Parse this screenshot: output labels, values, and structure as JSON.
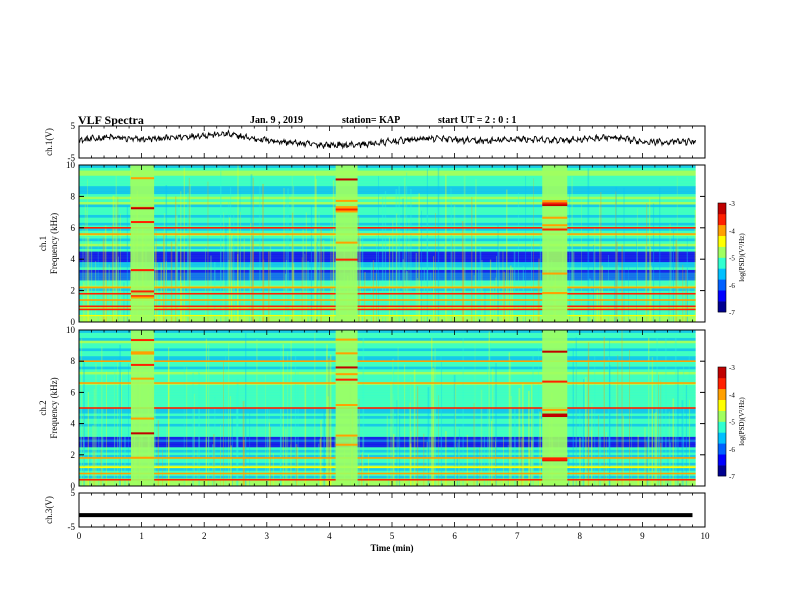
{
  "header": {
    "title": "VLF Spectra",
    "date": "Jan. 9 , 2019",
    "station": "station= KAP",
    "start": "start UT =  2 : 0 : 1"
  },
  "colorbar": {
    "label": "log(PSD)(V²/Hz)",
    "ticks": [
      "-3",
      "-4",
      "-5",
      "-6",
      "-7"
    ],
    "colors": [
      "#000090",
      "#0000ff",
      "#0060ff",
      "#00c0ff",
      "#30ffd0",
      "#a0ff60",
      "#ffff00",
      "#ffa000",
      "#ff2000",
      "#c00000",
      "#ffffff"
    ]
  },
  "chart_data": [
    {
      "type": "line",
      "name": "ch.1",
      "ylabel": "ch.1(V)",
      "ylim": [
        -5,
        5
      ],
      "yticks": [
        "5",
        "-5"
      ],
      "xlim": [
        0,
        10
      ],
      "x_unit": "min",
      "mean_level": 0,
      "note_values_approx": [
        0.5,
        1.5,
        0.8,
        1.2,
        2.0,
        2.5,
        1.0,
        0.0,
        -0.8,
        -1.0,
        -0.5,
        0.5,
        1.2,
        0.5,
        0.3,
        1.0,
        0.5,
        0.8,
        1.5,
        0.3,
        0.0,
        0.2
      ]
    },
    {
      "type": "heatmap",
      "name": "ch.1",
      "ylabel": "ch.1",
      "ylabel2": "Frequency (kHz)",
      "ylim": [
        0,
        10
      ],
      "yticks": [
        "0",
        "2",
        "4",
        "6",
        "8",
        "10"
      ],
      "xlim": [
        0,
        10
      ],
      "bursts_min": [
        [
          0.83,
          1.2
        ],
        [
          4.1,
          4.45
        ],
        [
          7.4,
          7.8
        ]
      ],
      "dark_bands_khz": [
        [
          2.6,
          3.3
        ],
        [
          3.7,
          4.5
        ]
      ],
      "lines_khz": [
        0.4,
        0.8,
        1.0,
        1.4,
        1.8,
        2.2,
        5.6,
        6.0
      ]
    },
    {
      "type": "heatmap",
      "name": "ch.2",
      "ylabel": "ch.2",
      "ylabel2": "Frequency (kHz)",
      "ylim": [
        0,
        10
      ],
      "yticks": [
        "0",
        "2",
        "4",
        "6",
        "8",
        "10"
      ],
      "xlim": [
        0,
        10
      ],
      "bursts_min": [
        [
          0.83,
          1.2
        ],
        [
          4.1,
          4.45
        ],
        [
          7.4,
          7.8
        ]
      ],
      "dark_bands_khz": [
        [
          2.4,
          3.1
        ]
      ],
      "lines_khz": [
        0.4,
        0.8,
        1.2,
        1.8,
        5.0,
        6.6,
        8.0
      ]
    },
    {
      "type": "line",
      "name": "ch.3",
      "ylabel": "ch.3(V)",
      "ylim": [
        -5,
        5
      ],
      "yticks": [
        "5",
        "-5"
      ],
      "xlim": [
        0,
        10
      ],
      "x": [
        0,
        9.8
      ],
      "y": [
        -1.5,
        -1.5
      ]
    }
  ],
  "xaxis": {
    "label": "Time (min)",
    "ticks": [
      "0",
      "1",
      "2",
      "3",
      "4",
      "5",
      "6",
      "7",
      "8",
      "9",
      "10"
    ]
  }
}
